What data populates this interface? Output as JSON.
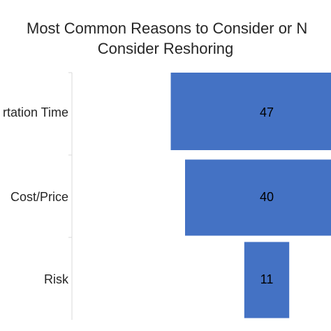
{
  "chart_data": {
    "type": "bar",
    "orientation": "horizontal-centered",
    "title_lines": [
      "Most Common Reasons to Consider or N",
      "Consider Reshoring"
    ],
    "categories": [
      "rtation Time",
      "Cost/Price",
      "Risk"
    ],
    "values": [
      47,
      40,
      11
    ],
    "bar_color": "#4472c4",
    "grid": false,
    "legend": "none"
  }
}
